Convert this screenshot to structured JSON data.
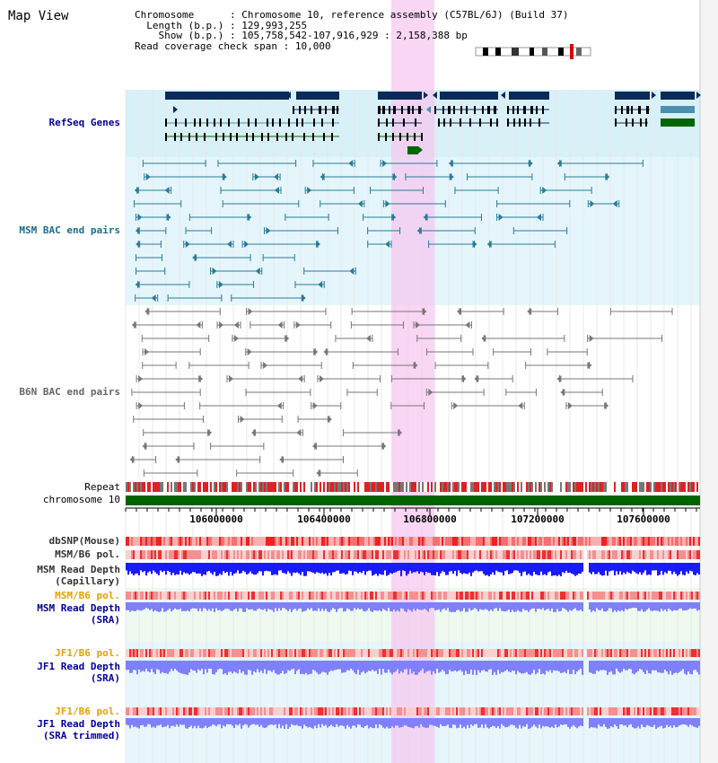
{
  "page": {
    "title": "Map View"
  },
  "info": {
    "chromosome_key": "Chromosome",
    "chromosome_value": "Chromosome 10, reference assembly (C57BL/6J) (Build 37)",
    "length_key": "Length (b.p.)",
    "length_value": "129,993,255",
    "show_key": "Show (b.p.)",
    "show_value": "105,758,542-107,916,929 : 2,158,388 bp",
    "coverage_key": "Read coverage check span",
    "coverage_value": "10,000"
  },
  "tracks": {
    "refseq": "RefSeq Genes",
    "msm_bac": "MSM BAC end pairs",
    "b6n_bac": "B6N BAC end pairs",
    "repeat": "Repeat",
    "chromosome": "chromosome 10",
    "dbsnp": "dbSNP(Mouse)",
    "msm_b6_pol": "MSM/B6 pol.",
    "msm_depth_cap_1": "MSM Read Depth",
    "msm_depth_cap_2": "(Capillary)",
    "msm_b6_pol_sra": "MSM/B6 pol.",
    "msm_depth_sra_1": "MSM Read Depth",
    "msm_depth_sra_2": "(SRA)",
    "jf1_b6_pol": "JF1/B6 pol.",
    "jf1_depth_1": "JF1 Read Depth",
    "jf1_depth_2": "(SRA)",
    "jf1_b6_pol_trim": "JF1/B6 pol.",
    "jf1_trim_1": "JF1 Read Depth",
    "jf1_trim_2": "(SRA trimmed)"
  },
  "ruler": {
    "ticks": [
      "106000000",
      "106400000",
      "106800000",
      "107200000",
      "107600000"
    ]
  },
  "colors": {
    "gene_dark": "#0b2a5a",
    "gene_teal": "#4a90b0",
    "gene_green": "#006600",
    "highlight": "#f5c8f0",
    "msm_bg": "#d8f0f8",
    "chromosome_bar": "#006400",
    "depth_blue": "#1a1aff",
    "depth_light": "#8080ff"
  }
}
